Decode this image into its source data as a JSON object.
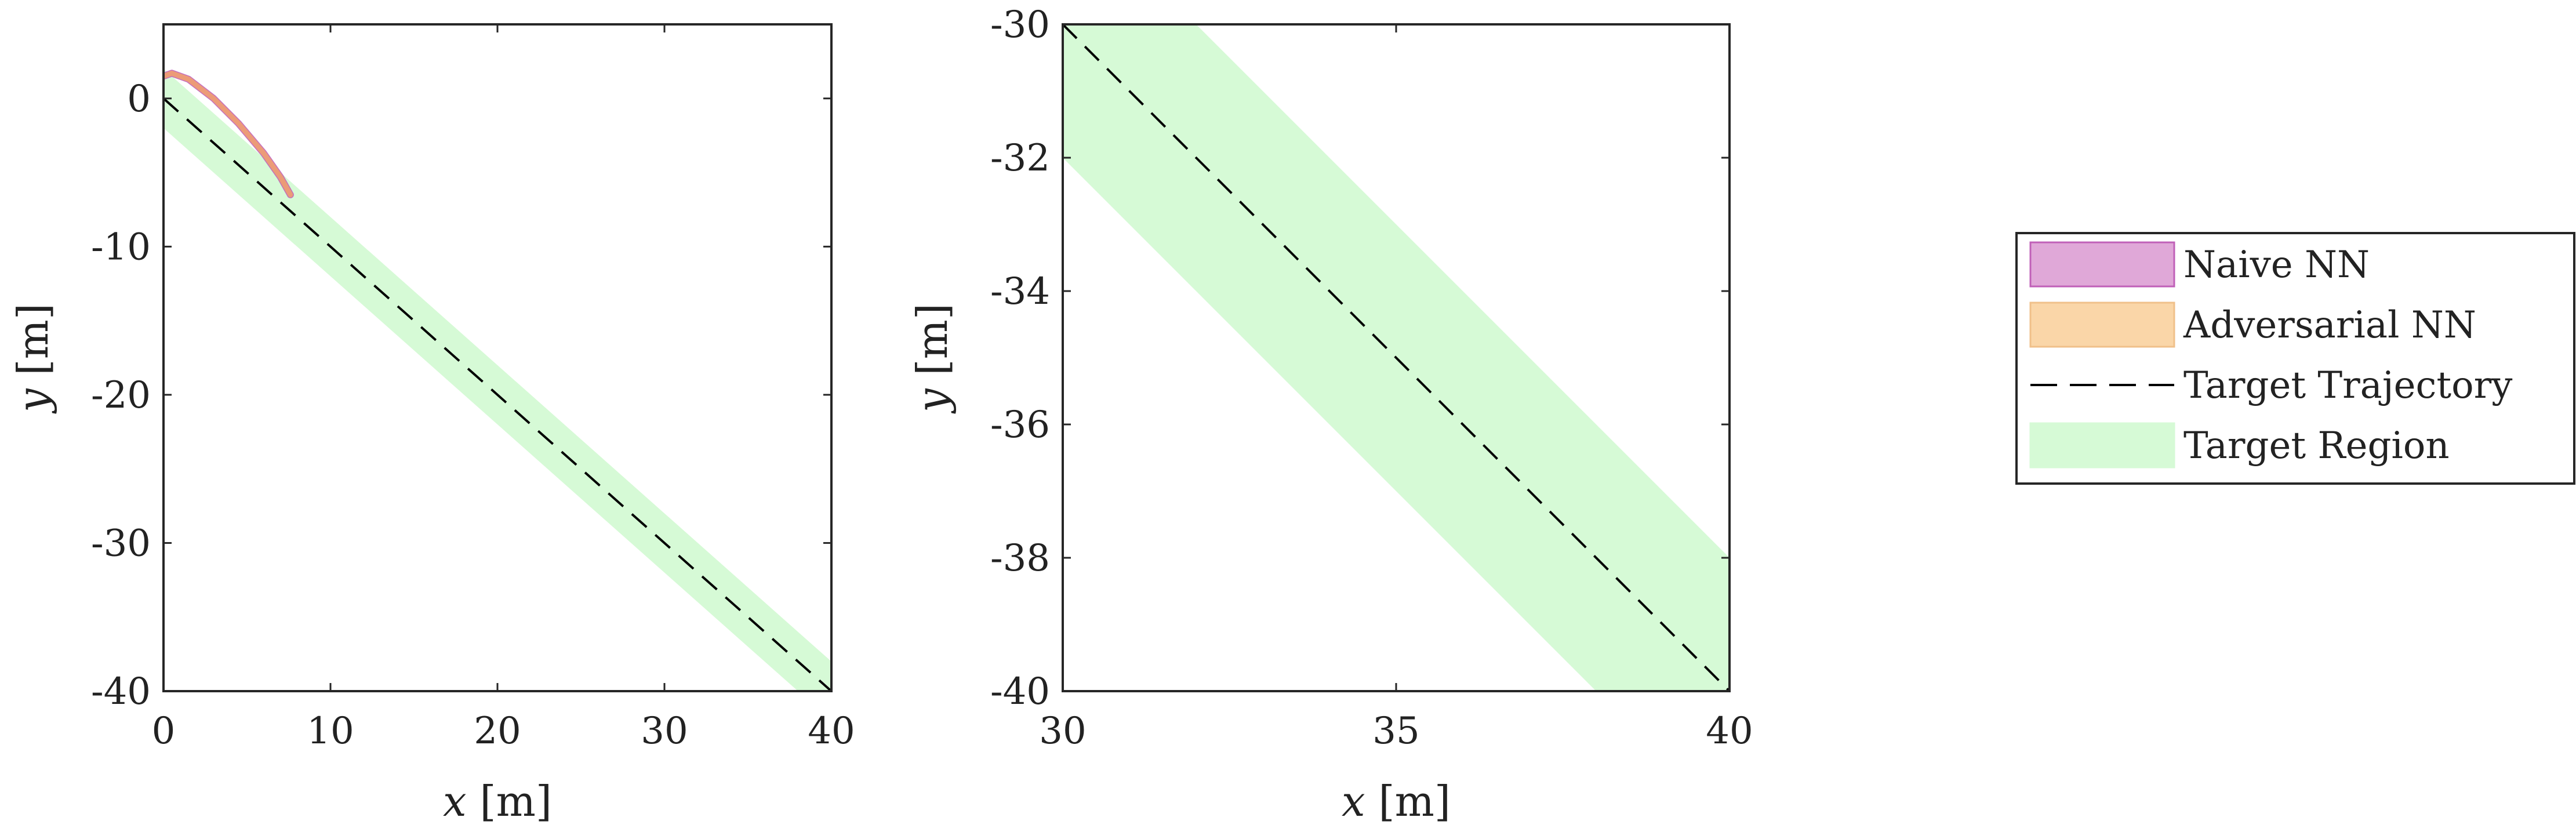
{
  "chart_data": [
    {
      "type": "line",
      "xlabel_var": "x",
      "xlabel_unit": "[m]",
      "ylabel_var": "y",
      "ylabel_unit": "[m]",
      "xlim": [
        0,
        40
      ],
      "ylim": [
        -40,
        5
      ],
      "xticks": [
        0,
        10,
        20,
        30,
        40
      ],
      "xtick_labels": [
        "0",
        "10",
        "20",
        "30",
        "40"
      ],
      "yticks": [
        0,
        -10,
        -20,
        -30,
        -40
      ],
      "ytick_labels": [
        "0",
        "-10",
        "-20",
        "-30",
        "-40"
      ],
      "grid": false,
      "series": [
        {
          "name": "Target Region",
          "kind": "band",
          "color": "#d6fad6",
          "x": [
            0,
            40
          ],
          "y_center": [
            0,
            -40
          ],
          "half_width_y": 2
        },
        {
          "name": "Target Trajectory",
          "kind": "dashed-line",
          "color": "#000000",
          "x": [
            0,
            40
          ],
          "y": [
            0,
            -40
          ]
        },
        {
          "name": "Naive NN",
          "kind": "line",
          "color": "#c060b8",
          "x": [
            0,
            0.5,
            1.5,
            3.0,
            4.5,
            6.0,
            7.0,
            7.6
          ],
          "y": [
            1.5,
            1.7,
            1.3,
            0.0,
            -1.7,
            -3.7,
            -5.3,
            -6.5
          ]
        },
        {
          "name": "Adversarial NN",
          "kind": "line",
          "color": "#f0a070",
          "x": [
            0,
            0.5,
            1.5,
            3.0,
            4.5,
            6.0,
            7.0,
            7.6
          ],
          "y": [
            1.5,
            1.7,
            1.3,
            0.0,
            -1.7,
            -3.7,
            -5.3,
            -6.5
          ]
        }
      ]
    },
    {
      "type": "line",
      "xlabel_var": "x",
      "xlabel_unit": "[m]",
      "ylabel_var": "y",
      "ylabel_unit": "[m]",
      "xlim": [
        30,
        40
      ],
      "ylim": [
        -40,
        -30
      ],
      "xticks": [
        30,
        35,
        40
      ],
      "xtick_labels": [
        "30",
        "35",
        "40"
      ],
      "yticks": [
        -30,
        -32,
        -34,
        -36,
        -38,
        -40
      ],
      "ytick_labels": [
        "-30",
        "-32",
        "-34",
        "-36",
        "-38",
        "-40"
      ],
      "grid": false,
      "series": [
        {
          "name": "Target Region",
          "kind": "band",
          "color": "#d6fad6",
          "x": [
            30,
            40
          ],
          "y_center": [
            -30,
            -40
          ],
          "half_width_y": 2
        },
        {
          "name": "Target Trajectory",
          "kind": "dashed-line",
          "color": "#000000",
          "x": [
            30,
            40
          ],
          "y": [
            -30,
            -40
          ]
        }
      ]
    }
  ],
  "legend": {
    "placement": "right",
    "entries": [
      {
        "label": "Naive NN",
        "swatch": "patch",
        "fill": "#e0a8d8",
        "stroke": "#c060b8"
      },
      {
        "label": "Adversarial NN",
        "swatch": "patch",
        "fill": "#fad6a8",
        "stroke": "#f0c08a"
      },
      {
        "label": "Target Trajectory",
        "swatch": "dashed-line",
        "fill": "",
        "stroke": "#000000"
      },
      {
        "label": "Target Region",
        "swatch": "patch",
        "fill": "#d6fad6",
        "stroke": "#d6fad6"
      }
    ]
  }
}
